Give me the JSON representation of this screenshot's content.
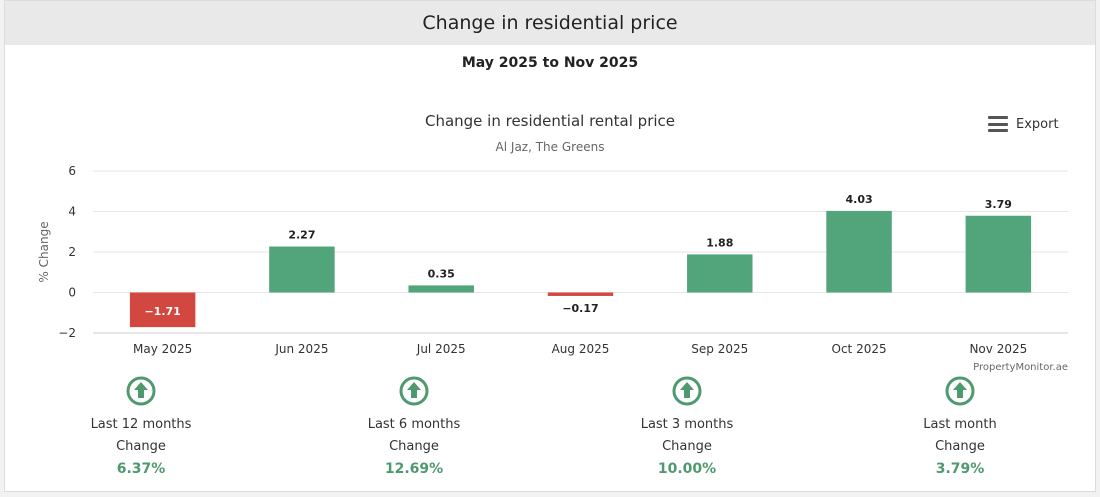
{
  "header": {
    "title": "Change in residential price"
  },
  "date_range": "May 2025 to Nov 2025",
  "export": {
    "label": "Export",
    "icon": "menu-icon"
  },
  "chart_data": {
    "type": "bar",
    "title": "Change in residential rental price",
    "subtitle": "Al Jaz, The Greens",
    "ylabel": "% Change",
    "xlabel": "",
    "categories": [
      "May 2025",
      "Jun 2025",
      "Jul 2025",
      "Aug 2025",
      "Sep 2025",
      "Oct 2025",
      "Nov 2025"
    ],
    "values": [
      -1.71,
      2.27,
      0.35,
      -0.17,
      1.88,
      4.03,
      3.79
    ],
    "data_labels": [
      "−1.71",
      "2.27",
      "0.35",
      "−0.17",
      "1.88",
      "4.03",
      "3.79"
    ],
    "ylim": [
      -2,
      6
    ],
    "yticks": [
      -2,
      0,
      2,
      4,
      6
    ],
    "ytick_labels": [
      "−2",
      "0",
      "2",
      "4",
      "6"
    ],
    "grid": true,
    "legend": "none",
    "colors": {
      "positive": "#52a47a",
      "negative": "#d2473f"
    },
    "credit": "PropertyMonitor.ae"
  },
  "stats": [
    {
      "label": "Last 12 months",
      "sub": "Change",
      "value": "6.37%",
      "icon": "up-arrow-circle-icon"
    },
    {
      "label": "Last 6 months",
      "sub": "Change",
      "value": "12.69%",
      "icon": "up-arrow-circle-icon"
    },
    {
      "label": "Last 3 months",
      "sub": "Change",
      "value": "10.00%",
      "icon": "up-arrow-circle-icon"
    },
    {
      "label": "Last month",
      "sub": "Change",
      "value": "3.79%",
      "icon": "up-arrow-circle-icon"
    }
  ],
  "accent": "#4e9a6e"
}
